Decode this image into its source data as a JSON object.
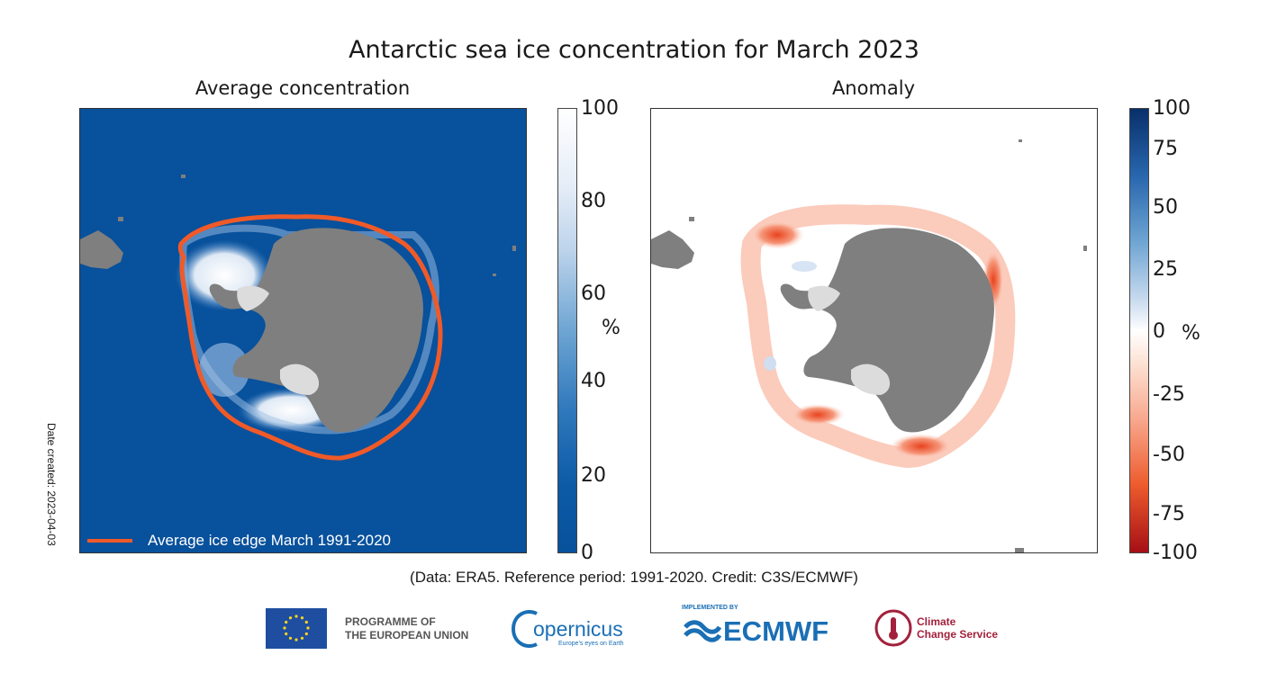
{
  "title": "Antarctic sea ice concentration for March 2023",
  "left_panel": {
    "subtitle": "Average concentration",
    "legend_label": "Average ice edge March 1991-2020",
    "legend_color": "#f05a28",
    "ocean_color": "#08519c",
    "land_color": "#7f7f7f"
  },
  "right_panel": {
    "subtitle": "Anomaly"
  },
  "colorbar_left": {
    "ticks": [
      "100",
      "80",
      "60",
      "40",
      "20",
      "0"
    ],
    "unit": "%"
  },
  "colorbar_right": {
    "ticks": [
      "100",
      "75",
      "50",
      "25",
      "0",
      "-25",
      "-50",
      "-75",
      "-100"
    ],
    "unit": "%"
  },
  "date_created": "Date created: 2023-04-03",
  "credit": "(Data: ERA5.  Reference period: 1991-2020.  Credit: C3S/ECMWF)",
  "logos": {
    "eu_line1": "PROGRAMME OF",
    "eu_line2": "THE EUROPEAN UNION",
    "copernicus": "opernicus",
    "copernicus_tagline": "Europe's eyes on Earth",
    "ecmwf_implemented": "IMPLEMENTED BY",
    "ecmwf": "ECMWF",
    "c3s_line1": "Climate",
    "c3s_line2": "Change Service"
  }
}
